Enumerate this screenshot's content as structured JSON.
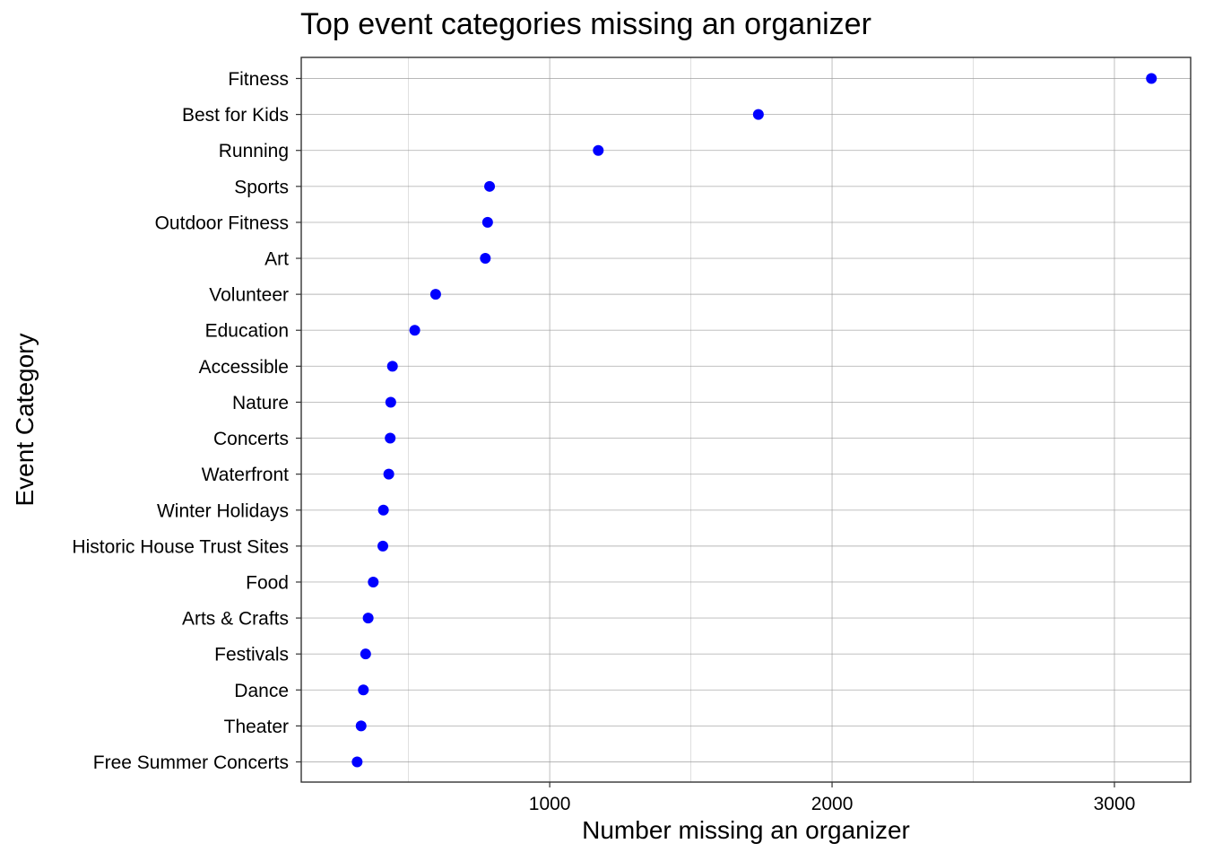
{
  "chart_data": {
    "type": "scatter",
    "title": "Top event categories missing an organizer",
    "xlabel": "Number missing an organizer",
    "ylabel": "Event Category",
    "xlim": [
      120,
      3270
    ],
    "x_ticks": [
      1000,
      2000,
      3000
    ],
    "x_tick_labels": [
      "1000",
      "2000",
      "3000"
    ],
    "grid": true,
    "point_color": "#0000ff",
    "categories": [
      "Fitness",
      "Best for Kids",
      "Running",
      "Sports",
      "Outdoor Fitness",
      "Art",
      "Volunteer",
      "Education",
      "Accessible",
      "Nature",
      "Concerts",
      "Waterfront",
      "Winter Holidays",
      "Historic House Trust Sites",
      "Food",
      "Arts & Crafts",
      "Festivals",
      "Dance",
      "Theater",
      "Free Summer Concerts"
    ],
    "values": [
      3131,
      1739,
      1172,
      787,
      780,
      772,
      596,
      522,
      443,
      437,
      435,
      430,
      411,
      409,
      375,
      357,
      348,
      340,
      332,
      318
    ]
  }
}
